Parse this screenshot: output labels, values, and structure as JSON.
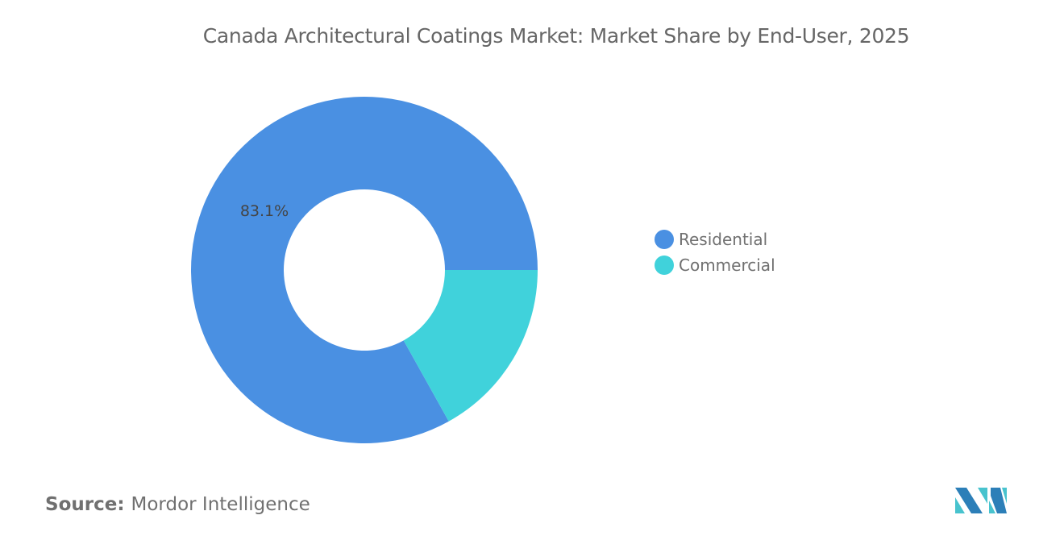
{
  "chart_data": {
    "type": "pie",
    "variant": "donut",
    "title": "Canada Architectural Coatings Market: Market Share by End-User, 2025",
    "categories": [
      "Residential",
      "Commercial"
    ],
    "values": [
      83.1,
      16.9
    ],
    "unit": "%",
    "data_labels": [
      "83.1%",
      ""
    ],
    "colors": [
      "#4A90E2",
      "#40D2DB"
    ],
    "legend_position": "right"
  },
  "source": {
    "label": "Source:",
    "value": "Mordor Intelligence"
  },
  "logo": {
    "colors": [
      "#2C7FB8",
      "#48C3CE"
    ]
  }
}
